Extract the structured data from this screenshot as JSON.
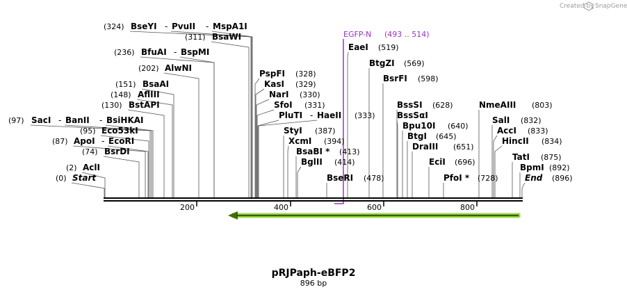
{
  "credit": {
    "prefix": "Created by",
    "brand": "SnapGene",
    "icon": "snapgene-logo-icon"
  },
  "plasmid": {
    "name": "pRJPaph-eBFP2",
    "length_label": "896 bp",
    "length": 896
  },
  "ticks": [
    "200",
    "400",
    "600",
    "800"
  ],
  "feature": {
    "name": "EGFP-N",
    "range": "(493 .. 514)",
    "color": "#9b30c8"
  },
  "arrow_color": "#7ec81e",
  "sites": [
    {
      "pos": "(0)",
      "names": [
        "Start"
      ],
      "italic": true
    },
    {
      "pos": "(2)",
      "names": [
        "AclI"
      ]
    },
    {
      "pos": "(74)",
      "names": [
        "BsrDI"
      ]
    },
    {
      "pos": "(87)",
      "names": [
        "ApoI",
        "EcoRI"
      ]
    },
    {
      "pos": "(95)",
      "names": [
        "Eco53kI"
      ]
    },
    {
      "pos": "(97)",
      "names": [
        "SacI",
        "BanII",
        "BsiHKAI"
      ]
    },
    {
      "pos": "(130)",
      "names": [
        "BstAPI"
      ]
    },
    {
      "pos": "(148)",
      "names": [
        "AflIII"
      ]
    },
    {
      "pos": "(151)",
      "names": [
        "BsaAI"
      ]
    },
    {
      "pos": "(202)",
      "names": [
        "AlwNI"
      ]
    },
    {
      "pos": "(236)",
      "names": [
        "BfuAI",
        "BspMI"
      ]
    },
    {
      "pos": "(311)",
      "names": [
        "BsaWI"
      ]
    },
    {
      "pos": "(324)",
      "names": [
        "BseYI",
        "PvuII",
        "MspA1I"
      ]
    },
    {
      "pos": "(328)",
      "names": [
        "PspFI"
      ]
    },
    {
      "pos": "(329)",
      "names": [
        "KasI"
      ]
    },
    {
      "pos": "(330)",
      "names": [
        "NarI"
      ]
    },
    {
      "pos": "(331)",
      "names": [
        "SfoI"
      ]
    },
    {
      "pos": "(333)",
      "names": [
        "PluTI",
        "HaeII"
      ]
    },
    {
      "pos": "(387)",
      "names": [
        "StyI"
      ]
    },
    {
      "pos": "(394)",
      "names": [
        "XcmI"
      ]
    },
    {
      "pos": "(413)",
      "names": [
        "BsaBI *"
      ]
    },
    {
      "pos": "(414)",
      "names": [
        "BglII"
      ]
    },
    {
      "pos": "(478)",
      "names": [
        "BseRI"
      ]
    },
    {
      "pos": "(519)",
      "names": [
        "EaeI"
      ]
    },
    {
      "pos": "(569)",
      "names": [
        "BtgZI"
      ]
    },
    {
      "pos": "(598)",
      "names": [
        "BsrFI"
      ]
    },
    {
      "pos": "(628)",
      "names": [
        "BssSI"
      ]
    },
    {
      "pos": "",
      "names": [
        "BssSαI"
      ]
    },
    {
      "pos": "(640)",
      "names": [
        "Bpu10I"
      ]
    },
    {
      "pos": "(645)",
      "names": [
        "BtgI"
      ]
    },
    {
      "pos": "(651)",
      "names": [
        "DraIII"
      ]
    },
    {
      "pos": "(696)",
      "names": [
        "EciI"
      ]
    },
    {
      "pos": "(728)",
      "names": [
        "PfoI *"
      ]
    },
    {
      "pos": "(803)",
      "names": [
        "NmeAIII"
      ]
    },
    {
      "pos": "(832)",
      "names": [
        "SalI"
      ]
    },
    {
      "pos": "(833)",
      "names": [
        "AccI"
      ]
    },
    {
      "pos": "(834)",
      "names": [
        "HincII"
      ]
    },
    {
      "pos": "(875)",
      "names": [
        "TatI"
      ]
    },
    {
      "pos": "(892)",
      "names": [
        "BpmI"
      ]
    },
    {
      "pos": "(896)",
      "names": [
        "End"
      ],
      "italic": true
    }
  ]
}
